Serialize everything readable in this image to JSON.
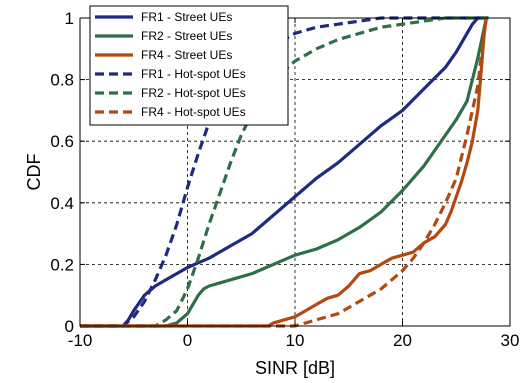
{
  "chart_data": {
    "type": "line",
    "title": "",
    "xlabel": "SINR [dB]",
    "ylabel": "CDF",
    "xlim": [
      -10,
      30
    ],
    "ylim": [
      0,
      1
    ],
    "xticks": [
      -10,
      0,
      10,
      20,
      30
    ],
    "yticks": [
      0,
      0.2,
      0.4,
      0.6,
      0.8,
      1
    ],
    "xtick_labels": [
      "-10",
      "0",
      "10",
      "20",
      "30"
    ],
    "ytick_labels": [
      "0",
      "0.2",
      "0.4",
      "0.6",
      "0.8",
      "1"
    ],
    "grid": true,
    "legend_position": "top-left",
    "series": [
      {
        "name": "FR1 - Street UEs",
        "color": "#1f2a80",
        "dash": "solid",
        "points": [
          [
            -10,
            0
          ],
          [
            -6,
            0
          ],
          [
            -5.5,
            0.02
          ],
          [
            -5,
            0.05
          ],
          [
            -4,
            0.1
          ],
          [
            -3,
            0.13
          ],
          [
            -2,
            0.15
          ],
          [
            -1,
            0.17
          ],
          [
            0,
            0.19
          ],
          [
            2,
            0.22
          ],
          [
            4,
            0.26
          ],
          [
            6,
            0.3
          ],
          [
            8,
            0.36
          ],
          [
            10,
            0.42
          ],
          [
            12,
            0.48
          ],
          [
            14,
            0.53
          ],
          [
            16,
            0.59
          ],
          [
            18,
            0.65
          ],
          [
            20,
            0.7
          ],
          [
            22,
            0.77
          ],
          [
            24,
            0.84
          ],
          [
            25,
            0.89
          ],
          [
            26,
            0.95
          ],
          [
            26.5,
            0.98
          ],
          [
            27,
            1
          ],
          [
            28,
            1
          ]
        ]
      },
      {
        "name": "FR2 - Street UEs",
        "color": "#2f6e4a",
        "dash": "solid",
        "points": [
          [
            -10,
            0
          ],
          [
            -2,
            0
          ],
          [
            -1,
            0.01
          ],
          [
            0,
            0.04
          ],
          [
            0.5,
            0.07
          ],
          [
            1,
            0.1
          ],
          [
            1.5,
            0.12
          ],
          [
            2,
            0.13
          ],
          [
            3,
            0.14
          ],
          [
            4,
            0.15
          ],
          [
            6,
            0.17
          ],
          [
            8,
            0.2
          ],
          [
            10,
            0.23
          ],
          [
            12,
            0.25
          ],
          [
            14,
            0.28
          ],
          [
            16,
            0.32
          ],
          [
            18,
            0.37
          ],
          [
            20,
            0.44
          ],
          [
            22,
            0.52
          ],
          [
            24,
            0.62
          ],
          [
            25,
            0.67
          ],
          [
            26,
            0.73
          ],
          [
            26.5,
            0.8
          ],
          [
            27,
            0.87
          ],
          [
            27.5,
            0.95
          ],
          [
            27.8,
            1
          ],
          [
            28,
            1
          ]
        ]
      },
      {
        "name": "FR4 - Street UEs",
        "color": "#b04a10",
        "dash": "solid",
        "points": [
          [
            -10,
            0
          ],
          [
            7.5,
            0
          ],
          [
            8,
            0.01
          ],
          [
            9,
            0.02
          ],
          [
            10,
            0.03
          ],
          [
            11,
            0.05
          ],
          [
            12,
            0.07
          ],
          [
            13,
            0.09
          ],
          [
            14,
            0.1
          ],
          [
            15,
            0.13
          ],
          [
            16,
            0.17
          ],
          [
            17,
            0.18
          ],
          [
            18,
            0.2
          ],
          [
            19,
            0.22
          ],
          [
            20,
            0.23
          ],
          [
            21,
            0.24
          ],
          [
            22,
            0.27
          ],
          [
            23,
            0.29
          ],
          [
            24,
            0.33
          ],
          [
            24.5,
            0.37
          ],
          [
            25,
            0.42
          ],
          [
            25.5,
            0.47
          ],
          [
            26,
            0.53
          ],
          [
            26.5,
            0.6
          ],
          [
            27,
            0.7
          ],
          [
            27.3,
            0.82
          ],
          [
            27.6,
            0.95
          ],
          [
            27.8,
            1
          ]
        ]
      },
      {
        "name": "FR1 - Hot-spot UEs",
        "color": "#1f2a80",
        "dash": "dashed",
        "points": [
          [
            -10,
            0
          ],
          [
            -6,
            0
          ],
          [
            -5,
            0.03
          ],
          [
            -4,
            0.08
          ],
          [
            -3,
            0.15
          ],
          [
            -2,
            0.23
          ],
          [
            -1,
            0.33
          ],
          [
            0,
            0.45
          ],
          [
            1,
            0.56
          ],
          [
            2,
            0.66
          ],
          [
            3,
            0.74
          ],
          [
            4,
            0.8
          ],
          [
            6,
            0.86
          ],
          [
            8,
            0.91
          ],
          [
            10,
            0.95
          ],
          [
            12,
            0.97
          ],
          [
            14,
            0.98
          ],
          [
            16,
            0.99
          ],
          [
            18,
            1
          ],
          [
            28,
            1
          ]
        ]
      },
      {
        "name": "FR2 - Hot-spot UEs",
        "color": "#2f6e4a",
        "dash": "dashed",
        "points": [
          [
            -10,
            0
          ],
          [
            -3,
            0
          ],
          [
            -2,
            0.02
          ],
          [
            -1,
            0.05
          ],
          [
            0,
            0.12
          ],
          [
            1,
            0.22
          ],
          [
            2,
            0.33
          ],
          [
            3,
            0.43
          ],
          [
            4,
            0.53
          ],
          [
            5,
            0.62
          ],
          [
            6,
            0.69
          ],
          [
            7,
            0.75
          ],
          [
            8,
            0.8
          ],
          [
            10,
            0.86
          ],
          [
            12,
            0.9
          ],
          [
            14,
            0.93
          ],
          [
            16,
            0.95
          ],
          [
            18,
            0.97
          ],
          [
            20,
            0.98
          ],
          [
            22,
            0.99
          ],
          [
            24,
            1
          ],
          [
            28,
            1
          ]
        ]
      },
      {
        "name": "FR4 - Hot-spot UEs",
        "color": "#b04a10",
        "dash": "dashed",
        "points": [
          [
            -10,
            0
          ],
          [
            10,
            0
          ],
          [
            11,
            0.01
          ],
          [
            12,
            0.02
          ],
          [
            13,
            0.03
          ],
          [
            14,
            0.04
          ],
          [
            15,
            0.06
          ],
          [
            16,
            0.08
          ],
          [
            17,
            0.1
          ],
          [
            18,
            0.12
          ],
          [
            19,
            0.15
          ],
          [
            20,
            0.18
          ],
          [
            21,
            0.22
          ],
          [
            22,
            0.27
          ],
          [
            23,
            0.33
          ],
          [
            24,
            0.4
          ],
          [
            25,
            0.48
          ],
          [
            25.5,
            0.55
          ],
          [
            26,
            0.62
          ],
          [
            26.5,
            0.7
          ],
          [
            27,
            0.78
          ],
          [
            27.3,
            0.87
          ],
          [
            27.6,
            0.95
          ],
          [
            27.8,
            1
          ]
        ]
      }
    ]
  }
}
